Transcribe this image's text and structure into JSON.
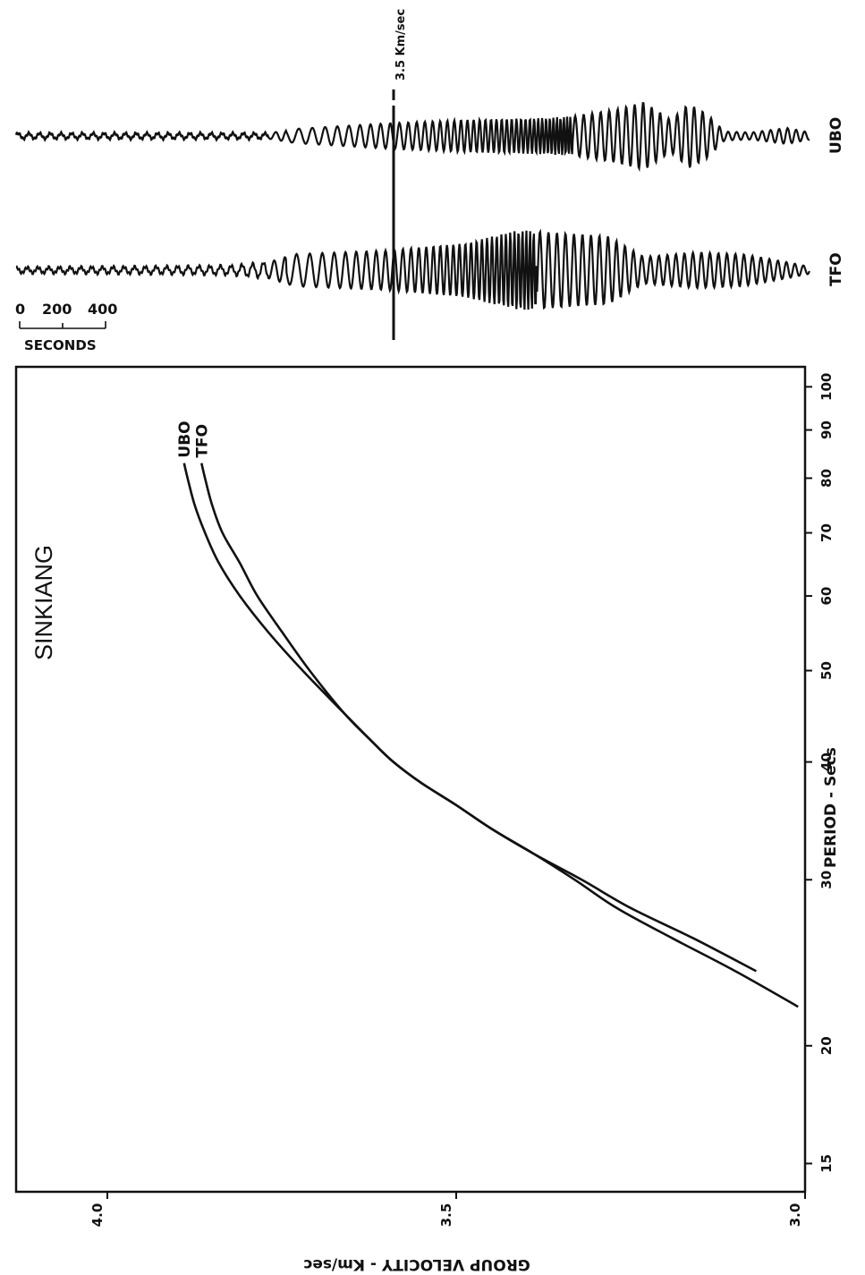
{
  "chart_data": [
    {
      "type": "line",
      "title": "SINKIANG",
      "xlabel": "PERIOD - Secs",
      "ylabel": "GROUP VELOCITY - Km/sec",
      "x_scale": "log",
      "xlim": [
        14,
        105
      ],
      "ylim": [
        3.0,
        4.0
      ],
      "xticks": [
        15,
        20,
        30,
        40,
        50,
        60,
        70,
        80,
        90,
        100
      ],
      "yticks": [
        3.0,
        3.5,
        4.0
      ],
      "ytick_labels": [
        "3.0",
        "3.5",
        "4.0"
      ],
      "legend": "curve-end labels",
      "series": [
        {
          "name": "UBO",
          "x": [
            22,
            24,
            26,
            28,
            30,
            32,
            34,
            36,
            38,
            40,
            42,
            45,
            50,
            55,
            60,
            65,
            70,
            75,
            80,
            83
          ],
          "y": [
            3.01,
            3.1,
            3.19,
            3.27,
            3.33,
            3.39,
            3.45,
            3.5,
            3.55,
            3.59,
            3.62,
            3.66,
            3.72,
            3.77,
            3.81,
            3.84,
            3.86,
            3.875,
            3.885,
            3.89
          ]
        },
        {
          "name": "TFO",
          "x": [
            24,
            26,
            28,
            30,
            32,
            34,
            36,
            38,
            40,
            42,
            45,
            50,
            55,
            60,
            65,
            70,
            75,
            80,
            83
          ],
          "y": [
            3.07,
            3.16,
            3.25,
            3.32,
            3.39,
            3.45,
            3.5,
            3.55,
            3.59,
            3.62,
            3.66,
            3.71,
            3.75,
            3.785,
            3.81,
            3.835,
            3.85,
            3.86,
            3.865
          ]
        }
      ]
    },
    {
      "type": "line",
      "title": "",
      "series": [
        {
          "name": "UBO"
        },
        {
          "name": "TFO"
        }
      ],
      "marker_label": "3.5 Km/sec",
      "scale_labels": [
        "0",
        "200",
        "400"
      ],
      "scale_unit": "SECONDS"
    }
  ],
  "colors": {
    "ink": "#111111",
    "background": "#ffffff"
  }
}
